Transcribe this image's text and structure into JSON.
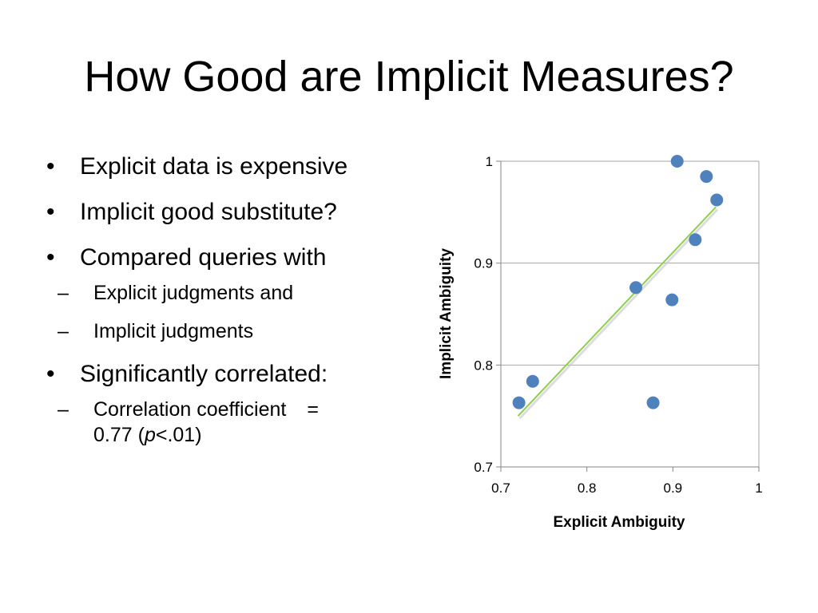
{
  "slide": {
    "title": "How Good are Implicit Measures?",
    "bullets": [
      {
        "label": "Explicit data is expensive",
        "subs": []
      },
      {
        "label": "Implicit good substitute?",
        "subs": []
      },
      {
        "label": "Compared queries with",
        "subs": [
          {
            "label": "Explicit judgments and"
          },
          {
            "label": "Implicit judgments"
          }
        ]
      },
      {
        "label": "Significantly correlated:",
        "subs": [
          {
            "label": "Correlation coefficient",
            "eq": "=",
            "value_line": "0.77 (",
            "p_symbol": "p",
            "p_rest": "<.01)"
          }
        ]
      }
    ],
    "bullet_symbol": "•",
    "dash_symbol": "–"
  },
  "chart_data": {
    "type": "scatter",
    "xlabel": "Explicit Ambiguity",
    "ylabel": "Implicit Ambiguity",
    "xlim": [
      0.7,
      1.0
    ],
    "ylim": [
      0.7,
      1.0
    ],
    "xticks": [
      0.7,
      0.8,
      0.9,
      1.0
    ],
    "xtick_labels": [
      "0.7",
      "0.8",
      "0.9",
      "1"
    ],
    "yticks": [
      0.7,
      0.8,
      0.9,
      1.0
    ],
    "ytick_labels": [
      "0.7",
      "0.8",
      "0.9",
      "1"
    ],
    "horizontal_gridlines": true,
    "legend": "none",
    "points": [
      {
        "x": 0.721,
        "y": 0.763
      },
      {
        "x": 0.737,
        "y": 0.784
      },
      {
        "x": 0.857,
        "y": 0.876
      },
      {
        "x": 0.877,
        "y": 0.763
      },
      {
        "x": 0.899,
        "y": 0.864
      },
      {
        "x": 0.905,
        "y": 1.0
      },
      {
        "x": 0.926,
        "y": 0.923
      },
      {
        "x": 0.939,
        "y": 0.985
      },
      {
        "x": 0.951,
        "y": 0.962
      }
    ],
    "trendline": {
      "x": [
        0.72,
        0.95
      ],
      "y": [
        0.75,
        0.955
      ]
    },
    "colors": {
      "point": "#4f81bd",
      "trendline": "#8fce4c",
      "grid": "#a6a6a6",
      "axis": "#868686"
    }
  }
}
